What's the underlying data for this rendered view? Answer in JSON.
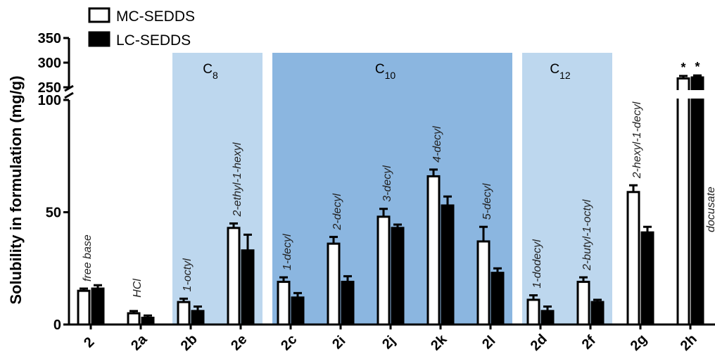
{
  "chart_data": {
    "type": "bar",
    "title": "",
    "xlabel": "",
    "ylabel": "Solubility in formulation (mg/g)",
    "ylim": [
      0,
      100
    ],
    "upper_segment_ticks": [
      "250",
      "300",
      "350"
    ],
    "yticks": [
      "0",
      "50",
      "100"
    ],
    "categories": [
      "2",
      "2a",
      "2b",
      "2e",
      "2c",
      "2i",
      "2j",
      "2k",
      "2l",
      "2d",
      "2f",
      "2g",
      "2h"
    ],
    "bar_labels": [
      "free base",
      "HCl",
      "1-octyl",
      "2-ethyl-1-hexyl",
      "1-decyl",
      "2-decyl",
      "3-decyl",
      "4-decyl",
      "5-decyl",
      "1-dodecyl",
      "2-butyl-1-octyl",
      "2-hexyl-1-decyl",
      "docusate"
    ],
    "series": [
      {
        "name": "MC-SEDDS",
        "color": "#ffffff",
        "values": [
          15,
          5,
          10,
          43,
          19,
          36,
          48,
          66,
          37,
          11,
          19,
          59,
          268
        ],
        "errors": [
          1,
          1,
          1.5,
          2,
          2,
          3,
          3.5,
          3,
          6.5,
          2,
          2,
          3,
          5
        ]
      },
      {
        "name": "LC-SEDDS",
        "color": "#000000",
        "values": [
          16,
          3,
          6,
          33,
          12,
          19,
          43,
          53,
          23,
          6,
          10,
          41,
          270
        ],
        "errors": [
          1.5,
          1,
          2,
          7,
          2,
          2.5,
          1.5,
          4,
          2,
          2,
          1,
          2.5,
          4
        ]
      }
    ],
    "significance_marker": "*",
    "regions": [
      {
        "label": "C",
        "subscript": "8",
        "color": "#bdd7ee",
        "from_index": 2,
        "to_index": 3
      },
      {
        "label": "C",
        "subscript": "10",
        "color": "#8bb6e0",
        "from_index": 4,
        "to_index": 8
      },
      {
        "label": "C",
        "subscript": "12",
        "color": "#bdd7ee",
        "from_index": 9,
        "to_index": 10
      }
    ],
    "legend_position": "top-left",
    "axis_break": true,
    "grid": false
  }
}
